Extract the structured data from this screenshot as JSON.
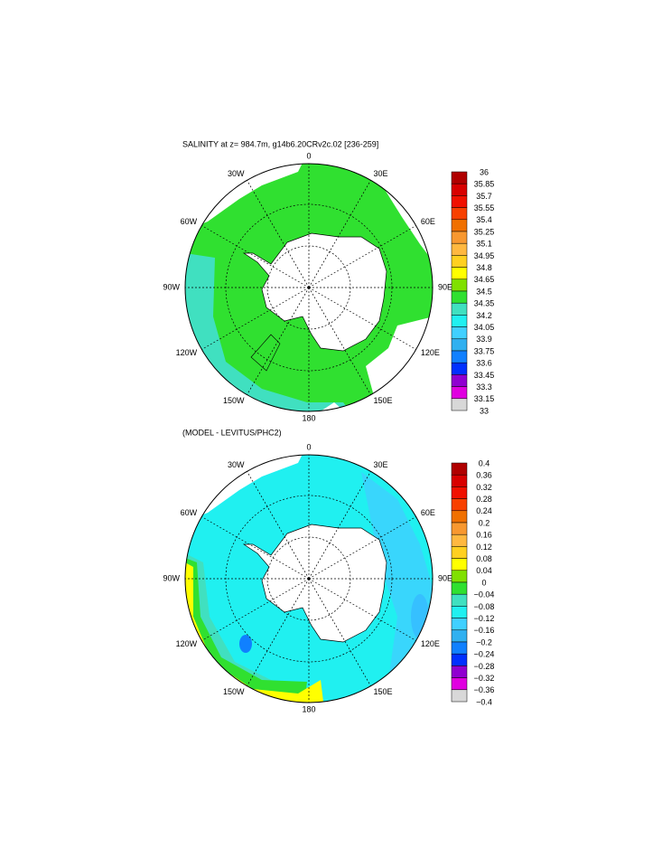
{
  "maps": [
    {
      "title": "SALINITY at z= 984.7m, g14b6.20CRv2c.02 [236-259]",
      "longitude_labels": [
        "0",
        "30E",
        "60E",
        "90E",
        "120E",
        "150E",
        "180",
        "150W",
        "120W",
        "90W",
        "60W",
        "30W"
      ],
      "colorbar": {
        "labels": [
          "36",
          "35.85",
          "35.7",
          "35.55",
          "35.4",
          "35.25",
          "35.1",
          "34.95",
          "34.8",
          "34.65",
          "34.5",
          "34.35",
          "34.2",
          "34.05",
          "33.9",
          "33.75",
          "33.6",
          "33.45",
          "33.3",
          "33.15",
          "33"
        ],
        "colors": [
          "#b00000",
          "#d80000",
          "#f01000",
          "#f84000",
          "#f07000",
          "#f89830",
          "#ffb840",
          "#ffd020",
          "#ffff00",
          "#80e000",
          "#30e030",
          "#40e0c0",
          "#20f0f0",
          "#40d0ff",
          "#30b0f0",
          "#1080ff",
          "#0030ff",
          "#9000d0",
          "#e000e0",
          "#d8d8d8",
          "#707070"
        ]
      }
    },
    {
      "title": "(MODEL - LEVITUS/PHC2)",
      "longitude_labels": [
        "0",
        "30E",
        "60E",
        "90E",
        "120E",
        "150E",
        "180",
        "150W",
        "120W",
        "90W",
        "60W",
        "30W"
      ],
      "colorbar": {
        "labels": [
          "0.4",
          "0.36",
          "0.32",
          "0.28",
          "0.24",
          "0.2",
          "0.16",
          "0.12",
          "0.08",
          "0.04",
          "0",
          "−0.04",
          "−0.08",
          "−0.12",
          "−0.16",
          "−0.2",
          "−0.24",
          "−0.28",
          "−0.32",
          "−0.36",
          "−0.4"
        ],
        "colors": [
          "#b00000",
          "#d80000",
          "#f01000",
          "#f84000",
          "#f07000",
          "#f89830",
          "#ffb840",
          "#ffd020",
          "#ffff00",
          "#80e000",
          "#30e030",
          "#40e0c0",
          "#20f0f0",
          "#40d0ff",
          "#30b0f0",
          "#1080ff",
          "#0030ff",
          "#9000d0",
          "#e000e0",
          "#d8d8d8",
          "#707070"
        ]
      }
    }
  ]
}
